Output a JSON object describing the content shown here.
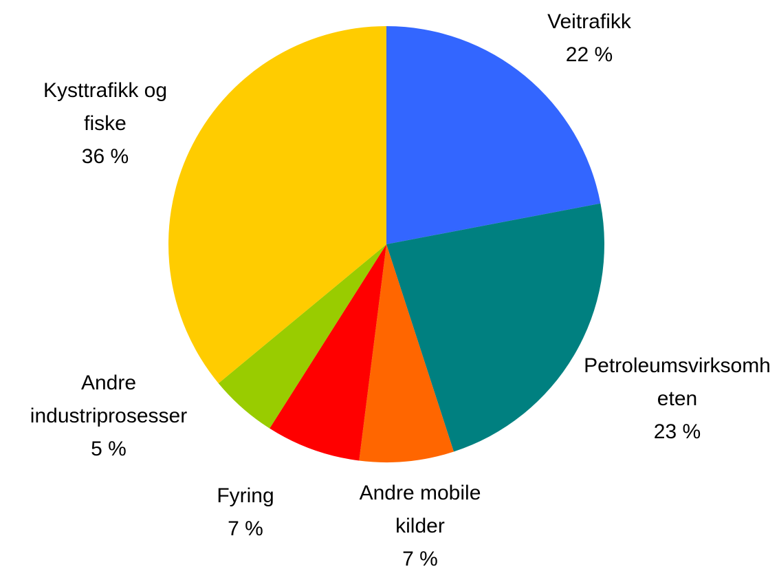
{
  "chart_data": {
    "type": "pie",
    "categories": [
      "Veitrafikk",
      "Petroleumsvirksomheten",
      "Andre mobile kilder",
      "Fyring",
      "Andre industriprosesser",
      "Kysttrafikk og fiske"
    ],
    "values": [
      22,
      23,
      7,
      7,
      5,
      36
    ],
    "value_labels": [
      "22 %",
      "23 %",
      "7 %",
      "7 %",
      "5 %",
      "36 %"
    ],
    "colors": [
      "#3366ff",
      "#008080",
      "#ff6600",
      "#ff0000",
      "#99cc00",
      "#ffcc00"
    ]
  }
}
